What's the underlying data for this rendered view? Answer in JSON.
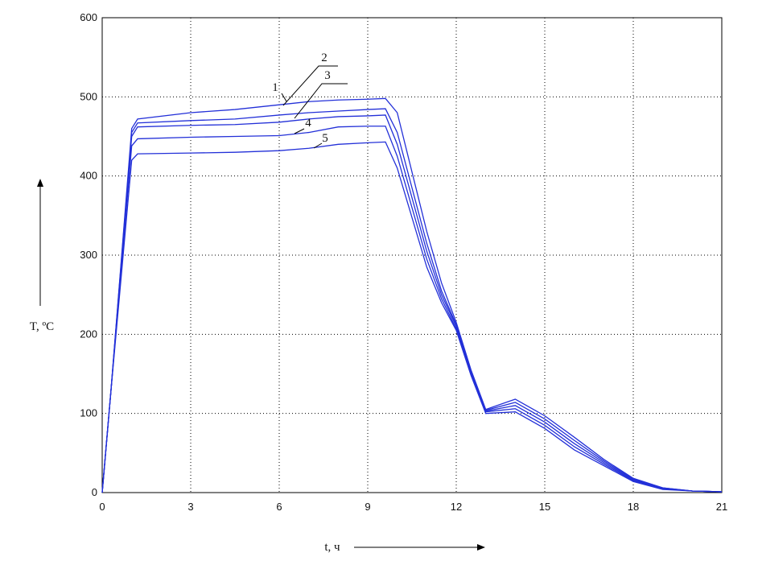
{
  "chart_data": {
    "type": "line",
    "x": [
      0,
      0.3,
      1,
      1.2,
      3,
      4.5,
      6,
      7,
      8,
      9,
      9.6,
      10,
      11,
      11.5,
      12,
      12.5,
      13,
      14,
      15,
      16,
      17,
      18,
      19,
      20,
      21
    ],
    "series": [
      {
        "name": "1",
        "color": "#2330d8",
        "values": [
          0,
          130,
          460,
          472,
          480,
          484,
          490,
          494,
          496,
          497,
          498,
          480,
          330,
          265,
          215,
          155,
          105,
          118,
          97,
          70,
          42,
          18,
          6,
          2,
          1
        ]
      },
      {
        "name": "2",
        "color": "#2330d8",
        "values": [
          0,
          130,
          455,
          467,
          470,
          472,
          477,
          480,
          482,
          484,
          485,
          455,
          315,
          255,
          212,
          153,
          104,
          114,
          93,
          66,
          40,
          17,
          6,
          2,
          1
        ]
      },
      {
        "name": "3",
        "color": "#2330d8",
        "values": [
          0,
          130,
          450,
          462,
          464,
          465,
          468,
          472,
          475,
          476,
          477,
          440,
          305,
          250,
          210,
          152,
          103,
          110,
          89,
          62,
          38,
          16,
          5,
          2,
          1
        ]
      },
      {
        "name": "4",
        "color": "#2330d8",
        "values": [
          0,
          130,
          438,
          447,
          449,
          450,
          451,
          455,
          462,
          463,
          463,
          425,
          295,
          245,
          207,
          150,
          102,
          106,
          85,
          58,
          36,
          15,
          5,
          2,
          1
        ]
      },
      {
        "name": "5",
        "color": "#2330d8",
        "values": [
          0,
          130,
          420,
          428,
          429,
          430,
          432,
          435,
          440,
          442,
          443,
          410,
          285,
          240,
          205,
          148,
          100,
          102,
          81,
          54,
          34,
          14,
          4,
          2,
          1
        ]
      }
    ],
    "x_label": "t, ч",
    "y_label": "T, ºC",
    "xlim": [
      0,
      21
    ],
    "xticks": [
      0,
      3,
      6,
      9,
      12,
      15,
      18,
      21
    ],
    "ylim": [
      0,
      600
    ],
    "yticks": [
      0,
      100,
      200,
      300,
      400,
      500,
      600
    ],
    "grid": true
  }
}
